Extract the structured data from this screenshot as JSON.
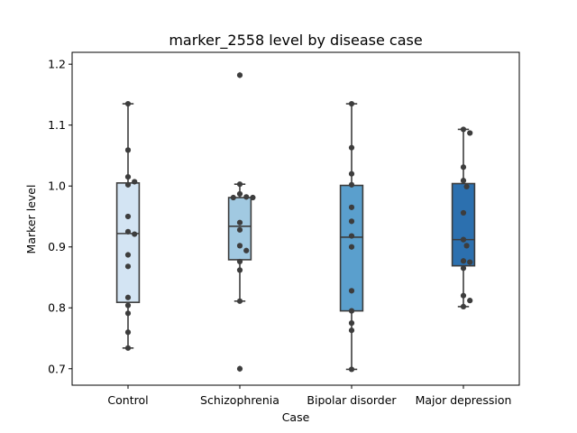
{
  "chart_data": {
    "type": "box",
    "title": "marker_2558 level by disease case",
    "xlabel": "Case",
    "ylabel": "Marker level",
    "ylim": [
      0.673,
      1.2195
    ],
    "yticks": [
      0.7,
      0.8,
      0.9,
      1.0,
      1.1,
      1.2
    ],
    "ytick_labels": [
      "0.7",
      "0.8",
      "0.9",
      "1.0",
      "1.1",
      "1.2"
    ],
    "grid": false,
    "categories": [
      "Control",
      "Schizophrenia",
      "Bipolar disorder",
      "Major depression"
    ],
    "colors": [
      "#d3e4f3",
      "#a1c9e1",
      "#5a9fcd",
      "#2c70af"
    ],
    "boxes": [
      {
        "q1": 0.809,
        "median": 0.922,
        "q3": 1.005,
        "whisker_low": 0.734,
        "whisker_high": 1.135,
        "outliers": []
      },
      {
        "q1": 0.879,
        "median": 0.934,
        "q3": 0.981,
        "whisker_low": 0.811,
        "whisker_high": 1.003,
        "outliers": [
          1.182,
          0.7
        ]
      },
      {
        "q1": 0.795,
        "median": 0.916,
        "q3": 1.001,
        "whisker_low": 0.699,
        "whisker_high": 1.135,
        "outliers": []
      },
      {
        "q1": 0.869,
        "median": 0.912,
        "q3": 1.004,
        "whisker_low": 0.802,
        "whisker_high": 1.093,
        "outliers": []
      }
    ],
    "points": [
      [
        1.135,
        1.059,
        1.015,
        1.007,
        1.002,
        0.95,
        0.925,
        0.921,
        0.887,
        0.868,
        0.817,
        0.804,
        0.791,
        0.76,
        0.734
      ],
      [
        1.182,
        1.003,
        0.987,
        0.981,
        0.981,
        0.982,
        0.94,
        0.928,
        0.902,
        0.894,
        0.876,
        0.862,
        0.811,
        0.7
      ],
      [
        1.135,
        1.063,
        1.02,
        1.002,
        0.965,
        0.942,
        0.918,
        0.9,
        0.828,
        0.795,
        0.775,
        0.763,
        0.699
      ],
      [
        1.093,
        1.087,
        1.031,
        1.009,
        0.999,
        0.956,
        0.912,
        0.902,
        0.877,
        0.875,
        0.865,
        0.82,
        0.812,
        0.802
      ]
    ]
  }
}
